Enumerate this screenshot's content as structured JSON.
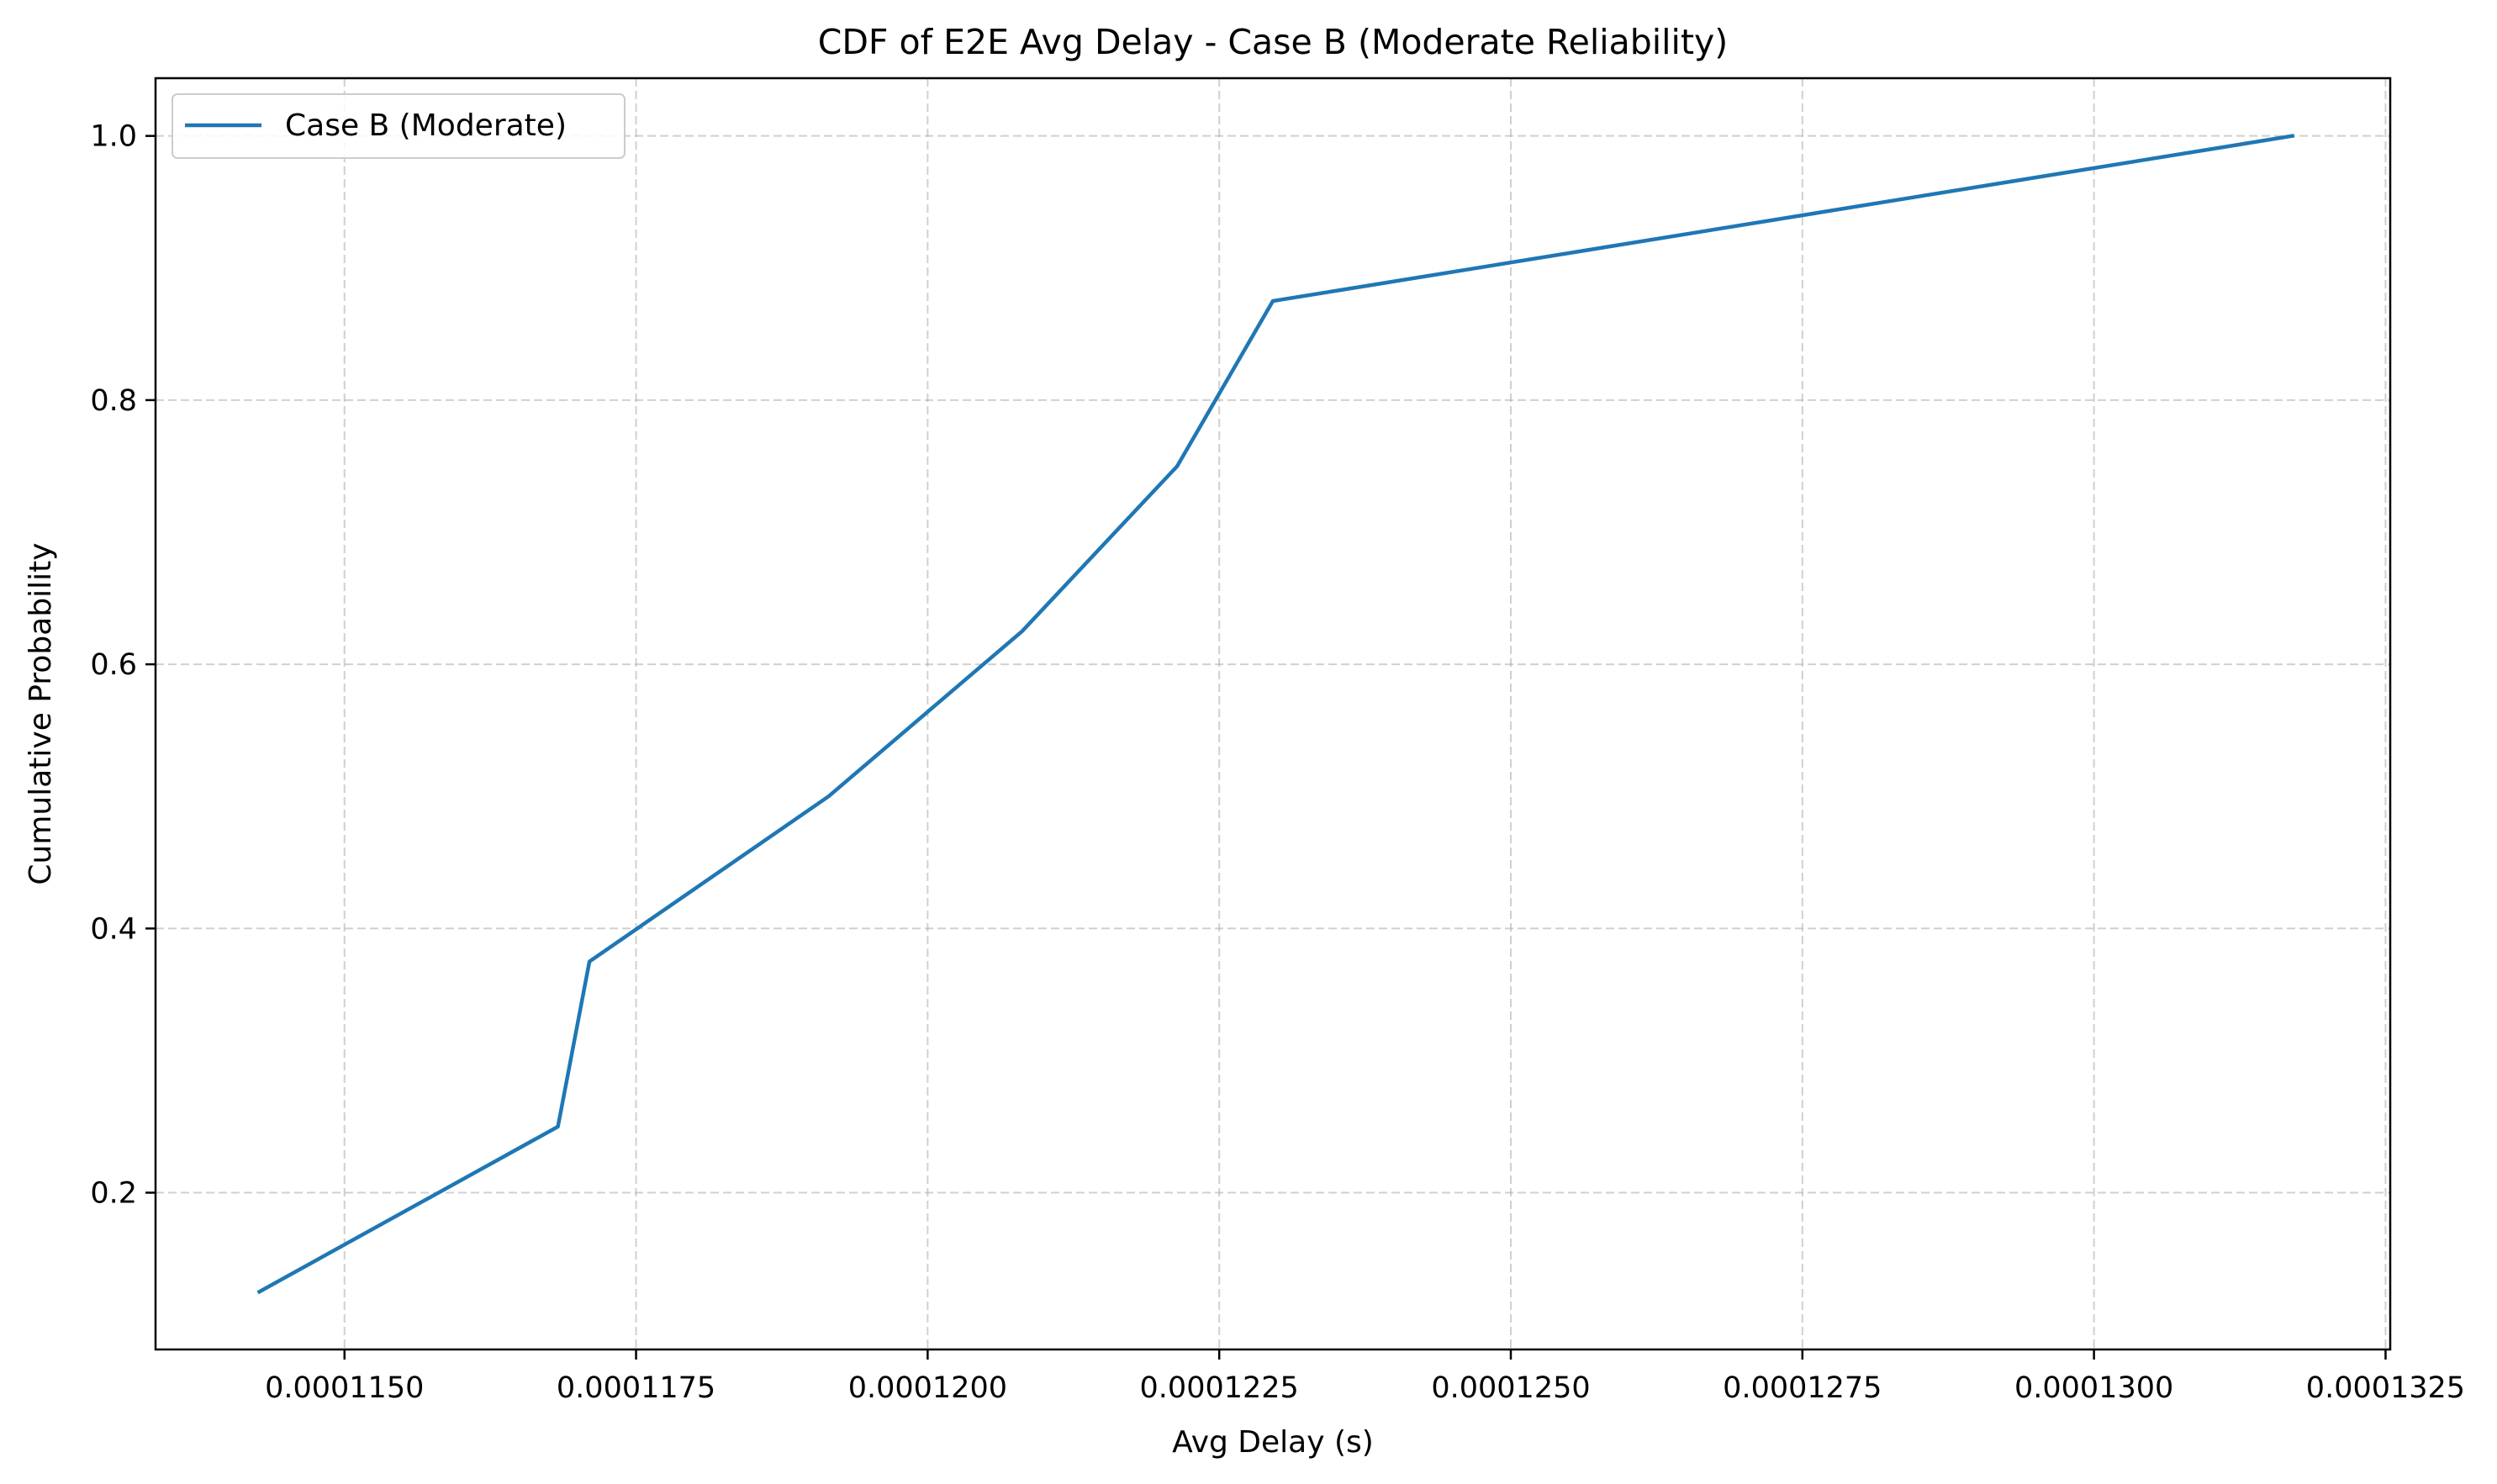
{
  "chart_data": {
    "type": "line",
    "title": "CDF of E2E Avg Delay - Case B (Moderate Reliability)",
    "xlabel": "Avg Delay (s)",
    "ylabel": "Cumulative Probability",
    "xlim": [
      0.00011338,
      0.00013254
    ],
    "ylim": [
      0.0813,
      1.0437
    ],
    "xticks": [
      {
        "value": 0.000115,
        "label": "0.0001150"
      },
      {
        "value": 0.0001175,
        "label": "0.0001175"
      },
      {
        "value": 0.00012,
        "label": "0.0001200"
      },
      {
        "value": 0.0001225,
        "label": "0.0001225"
      },
      {
        "value": 0.000125,
        "label": "0.0001250"
      },
      {
        "value": 0.0001275,
        "label": "0.0001275"
      },
      {
        "value": 0.00013,
        "label": "0.0001300"
      },
      {
        "value": 0.0001325,
        "label": "0.0001325"
      }
    ],
    "yticks": [
      {
        "value": 0.2,
        "label": "0.2"
      },
      {
        "value": 0.4,
        "label": "0.4"
      },
      {
        "value": 0.6,
        "label": "0.6"
      },
      {
        "value": 0.8,
        "label": "0.8"
      },
      {
        "value": 1.0,
        "label": "1.0"
      }
    ],
    "grid": true,
    "legend_position": "top-left",
    "series": [
      {
        "name": "Case B (Moderate)",
        "color": "#1f77b4",
        "x": [
          0.00011427,
          0.00011683,
          0.0001171,
          0.00011915,
          0.00012081,
          0.00012214,
          0.00012296,
          0.0001317
        ],
        "y": [
          0.125,
          0.25,
          0.375,
          0.5,
          0.625,
          0.75,
          0.875,
          1.0
        ]
      }
    ]
  }
}
